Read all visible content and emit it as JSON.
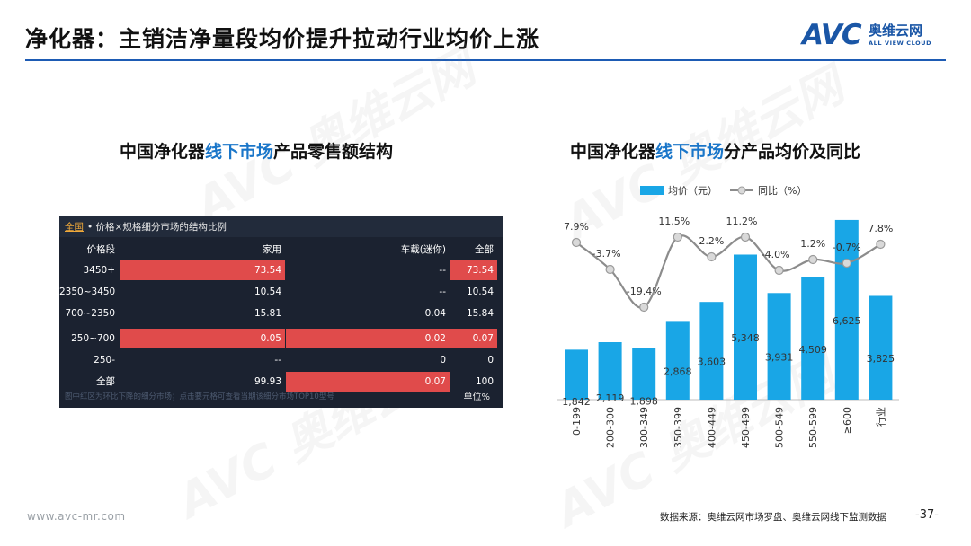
{
  "header": {
    "title": "净化器：主销洁净量段均价提升拉动行业均价上涨"
  },
  "logo": {
    "mark": "AVC",
    "cn": "奥维云网",
    "en": "ALL VIEW CLOUD"
  },
  "watermark": {
    "text": "AVC 奥维云网"
  },
  "left_panel": {
    "title_pre": "中国净化器",
    "title_hl": "线下市场",
    "title_post": "产品零售额结构",
    "table": {
      "scope_link": "全国",
      "caption": " • 价格×规格细分市场的结构比例",
      "columns": [
        "价格段",
        "家用",
        "车载(迷你)",
        "全部"
      ],
      "rows": [
        {
          "label": "3450+",
          "cells": [
            "73.54",
            "--",
            "73.54"
          ]
        },
        {
          "label": "2350~3450",
          "cells": [
            "10.54",
            "--",
            "10.54"
          ]
        },
        {
          "label": "700~2350",
          "cells": [
            "15.81",
            "0.04",
            "15.84"
          ]
        },
        {
          "label": "250~700",
          "cells": [
            "0.05",
            "0.02",
            "0.07"
          ]
        },
        {
          "label": "250-",
          "cells": [
            "--",
            "0",
            "0"
          ]
        },
        {
          "label": "全部",
          "cells": [
            "99.93",
            "0.07",
            "100"
          ]
        }
      ],
      "footnote": "图中红区为环比下降的细分市场；点击要元格可查看当期该细分市场TOP10型号",
      "unit": "单位%",
      "highlight_color": "#e04b4b"
    }
  },
  "right_panel": {
    "title_pre": "中国净化器",
    "title_hl": "线下市场",
    "title_post": "分产品均价及同比"
  },
  "chart_data": {
    "type": "bar",
    "categories": [
      "0-199",
      "200-300",
      "300-349",
      "350-399",
      "400-449",
      "450-499",
      "500-549",
      "550-599",
      "≥600",
      "行业"
    ],
    "series": [
      {
        "name": "均价（元）",
        "type": "bar",
        "values": [
          1842,
          2119,
          1898,
          2868,
          3603,
          5348,
          3931,
          4509,
          6625,
          3825
        ],
        "labels": [
          "1,842",
          "2,119",
          "1,898",
          "2,868",
          "3,603",
          "5,348",
          "3,931",
          "4,509",
          "6,625",
          "3,825"
        ],
        "color": "#19a6e6"
      },
      {
        "name": "同比（%）",
        "type": "line",
        "values": [
          7.9,
          -3.7,
          -19.4,
          11.5,
          2.2,
          11.2,
          -4.0,
          1.2,
          -0.7,
          7.8
        ],
        "labels": [
          "7.9%",
          "-3.7%",
          "-19.4%",
          "11.5%",
          "2.2%",
          "11.2%",
          "-4.0%",
          "1.2%",
          "-0.7%",
          "7.8%"
        ],
        "color": "#8c8c8c"
      }
    ],
    "legend": "top-center",
    "grid": false
  },
  "footer": {
    "url": "www.avc-mr.com",
    "source": "数据来源：奥维云网市场罗盘、奥维云网线下监测数据",
    "page": "-37-"
  }
}
